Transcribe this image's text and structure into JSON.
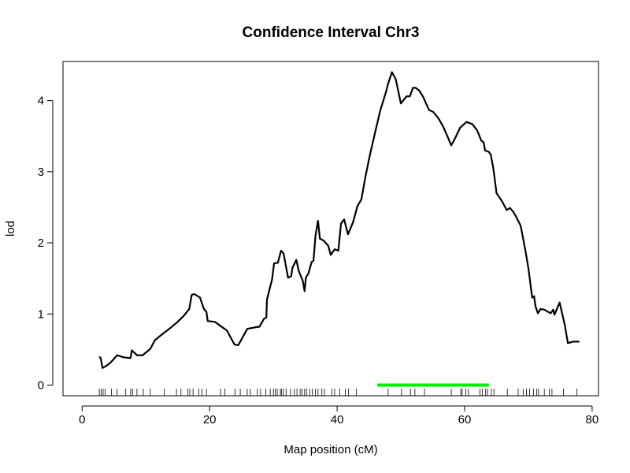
{
  "chart_data": {
    "type": "line",
    "title": "Confidence Interval Chr3",
    "xlabel": "Map position (cM)",
    "ylabel": "lod",
    "xlim": [
      -3,
      81
    ],
    "ylim": [
      -0.15,
      4.55
    ],
    "x_ticks": [
      0,
      20,
      40,
      60,
      80
    ],
    "y_ticks": [
      0,
      1,
      2,
      3,
      4
    ],
    "grid": false,
    "legend": "none",
    "series": [
      {
        "color": "#000000",
        "points": [
          [
            2.7,
            0.4
          ],
          [
            2.9,
            0.38
          ],
          [
            3.2,
            0.24
          ],
          [
            3.8,
            0.27
          ],
          [
            4.5,
            0.32
          ],
          [
            5.5,
            0.42
          ],
          [
            6.5,
            0.39
          ],
          [
            7.6,
            0.38
          ],
          [
            7.8,
            0.49
          ],
          [
            8.6,
            0.42
          ],
          [
            9.5,
            0.42
          ],
          [
            10.7,
            0.51
          ],
          [
            11.4,
            0.63
          ],
          [
            12.5,
            0.71
          ],
          [
            13.8,
            0.8
          ],
          [
            15.0,
            0.89
          ],
          [
            16.0,
            0.98
          ],
          [
            16.8,
            1.07
          ],
          [
            17.2,
            1.27
          ],
          [
            17.6,
            1.28
          ],
          [
            18.5,
            1.23
          ],
          [
            19.1,
            1.07
          ],
          [
            19.5,
            1.03
          ],
          [
            19.7,
            0.9
          ],
          [
            20.8,
            0.89
          ],
          [
            22.2,
            0.8
          ],
          [
            22.7,
            0.77
          ],
          [
            23.9,
            0.57
          ],
          [
            24.5,
            0.56
          ],
          [
            25.9,
            0.79
          ],
          [
            27.0,
            0.81
          ],
          [
            27.8,
            0.82
          ],
          [
            28.2,
            0.88
          ],
          [
            28.5,
            0.93
          ],
          [
            28.9,
            0.95
          ],
          [
            29.0,
            1.2
          ],
          [
            29.8,
            1.49
          ],
          [
            30.1,
            1.71
          ],
          [
            30.7,
            1.72
          ],
          [
            31.2,
            1.89
          ],
          [
            31.6,
            1.85
          ],
          [
            32.3,
            1.51
          ],
          [
            32.8,
            1.53
          ],
          [
            33.0,
            1.65
          ],
          [
            33.6,
            1.76
          ],
          [
            34.0,
            1.6
          ],
          [
            34.6,
            1.47
          ],
          [
            34.9,
            1.32
          ],
          [
            35.1,
            1.51
          ],
          [
            35.5,
            1.57
          ],
          [
            36.0,
            1.73
          ],
          [
            36.3,
            1.75
          ],
          [
            36.6,
            2.1
          ],
          [
            37.0,
            2.31
          ],
          [
            37.3,
            2.06
          ],
          [
            37.9,
            2.03
          ],
          [
            38.6,
            1.96
          ],
          [
            39.0,
            1.83
          ],
          [
            39.6,
            1.91
          ],
          [
            40.2,
            1.89
          ],
          [
            40.6,
            2.27
          ],
          [
            41.1,
            2.33
          ],
          [
            41.7,
            2.12
          ],
          [
            42.5,
            2.29
          ],
          [
            43.2,
            2.52
          ],
          [
            43.8,
            2.61
          ],
          [
            44.4,
            2.91
          ],
          [
            45.2,
            3.26
          ],
          [
            46.0,
            3.57
          ],
          [
            46.8,
            3.87
          ],
          [
            47.6,
            4.1
          ],
          [
            48.0,
            4.24
          ],
          [
            48.6,
            4.4
          ],
          [
            49.2,
            4.3
          ],
          [
            50.0,
            3.96
          ],
          [
            50.9,
            4.06
          ],
          [
            51.4,
            4.06
          ],
          [
            51.9,
            4.18
          ],
          [
            52.3,
            4.18
          ],
          [
            52.9,
            4.14
          ],
          [
            53.5,
            4.05
          ],
          [
            54.0,
            3.95
          ],
          [
            54.4,
            3.87
          ],
          [
            55.1,
            3.84
          ],
          [
            55.9,
            3.75
          ],
          [
            56.6,
            3.64
          ],
          [
            57.3,
            3.5
          ],
          [
            57.9,
            3.37
          ],
          [
            58.5,
            3.47
          ],
          [
            59.3,
            3.62
          ],
          [
            60.3,
            3.7
          ],
          [
            61.2,
            3.67
          ],
          [
            61.9,
            3.59
          ],
          [
            62.3,
            3.51
          ],
          [
            62.6,
            3.44
          ],
          [
            63.0,
            3.41
          ],
          [
            63.2,
            3.3
          ],
          [
            63.8,
            3.28
          ],
          [
            64.1,
            3.24
          ],
          [
            64.5,
            3.05
          ],
          [
            65.0,
            2.7
          ],
          [
            65.9,
            2.58
          ],
          [
            66.6,
            2.46
          ],
          [
            67.1,
            2.49
          ],
          [
            67.6,
            2.44
          ],
          [
            68.0,
            2.38
          ],
          [
            68.8,
            2.24
          ],
          [
            69.6,
            1.86
          ],
          [
            70.0,
            1.64
          ],
          [
            70.6,
            1.23
          ],
          [
            70.9,
            1.25
          ],
          [
            71.1,
            1.11
          ],
          [
            71.5,
            1.01
          ],
          [
            71.9,
            1.07
          ],
          [
            72.5,
            1.06
          ],
          [
            73.5,
            1.01
          ],
          [
            73.9,
            1.06
          ],
          [
            74.1,
            0.99
          ],
          [
            74.9,
            1.16
          ],
          [
            75.7,
            0.85
          ],
          [
            76.2,
            0.59
          ],
          [
            77.0,
            0.61
          ],
          [
            78.0,
            0.61
          ]
        ]
      }
    ],
    "confidence_interval": {
      "x_start": 46.3,
      "x_end": 63.8,
      "y": 0,
      "color": "#00ee00"
    },
    "marker_positions": [
      2.7,
      3.0,
      3.3,
      3.6,
      4.6,
      5.5,
      6.8,
      7.6,
      7.9,
      8.6,
      9.6,
      10.7,
      12.9,
      14.8,
      15.5,
      16.6,
      16.9,
      17.4,
      18.3,
      18.8,
      19.5,
      21.7,
      22.4,
      24.0,
      24.8,
      25.9,
      26.4,
      27.5,
      28.0,
      28.8,
      29.5,
      30.0,
      30.3,
      30.6,
      31.1,
      31.3,
      31.6,
      32.0,
      32.7,
      33.3,
      33.7,
      34.2,
      34.5,
      34.9,
      35.2,
      35.7,
      36.1,
      36.6,
      37.0,
      37.6,
      38.0,
      39.2,
      39.6,
      40.4,
      41.3,
      41.8,
      43.0,
      48.0,
      50.1,
      51.5,
      52.2,
      53.7,
      57.9,
      59.4,
      59.6,
      60.2,
      60.6,
      62.4,
      62.8,
      63.3,
      63.6,
      64.2,
      64.6,
      66.7,
      68.4,
      69.2,
      69.7,
      70.2,
      70.8,
      71.3,
      71.6,
      72.5,
      73.3,
      73.7,
      75.5,
      77.6
    ],
    "line_color": "#000000",
    "axis_color": "#000000"
  }
}
